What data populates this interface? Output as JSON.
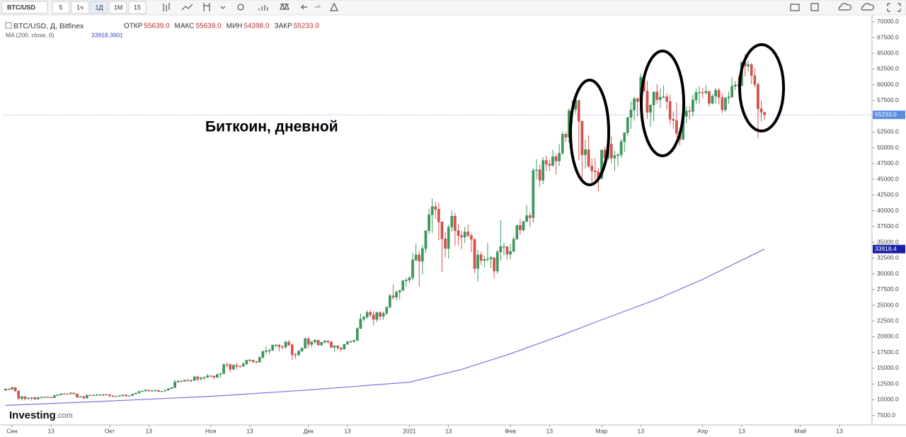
{
  "toolbar": {
    "symbol": "BTC/USD",
    "intervals": [
      "5",
      "1ч",
      "1Д",
      "1М",
      "15"
    ]
  },
  "chart_data": {
    "type": "candlestick",
    "legend_title": "BTC/USD, Д, Bitfinex",
    "ohlc_header": [
      {
        "label": "ОТКР",
        "value": "55639.0"
      },
      {
        "label": "МАКС",
        "value": "55639.0"
      },
      {
        "label": "МИН",
        "value": "54398.0"
      },
      {
        "label": "ЗАКР",
        "value": "55233.0"
      }
    ],
    "annotation": "Биткоин, дневной",
    "up_color": "#3b9b5c",
    "down_color": "#d9534f",
    "open": [
      11500,
      11700,
      11650,
      11950,
      11400,
      10200,
      10500,
      10150,
      10250,
      10350,
      10100,
      10350,
      10400,
      10450,
      10400,
      10320,
      10670,
      10780,
      10950,
      10940,
      10930,
      11080,
      10920,
      10420,
      10530,
      10240,
      10740,
      10690,
      10730,
      10770,
      10700,
      10840,
      10780,
      10620,
      10570,
      10550,
      10670,
      10790,
      10600,
      10670,
      10920,
      11060,
      11300,
      11380,
      11540,
      11430,
      11430,
      11500,
      11320,
      11370,
      11510,
      11750,
      11920,
      12820,
      12970,
      12930,
      13130,
      13030,
      13070,
      13640,
      13280,
      13460,
      13560,
      13800,
      13760,
      13550,
      14030,
      14150,
      15590,
      15580,
      14830,
      15480,
      15330,
      15300,
      15700,
      16280,
      16320,
      16070,
      15960,
      16720,
      17660,
      17800,
      17820,
      18680,
      18710,
      18420,
      18370,
      19160,
      18720,
      17150,
      17140,
      17720,
      18180,
      19710,
      18800,
      19200,
      19450,
      18700,
      19150,
      19360,
      19170,
      18320,
      18550,
      18250,
      18040,
      18800,
      19170,
      19270,
      19440,
      21310,
      22800,
      23140,
      23870,
      23480,
      22750,
      23830,
      23240,
      23730,
      24710,
      26490,
      26280,
      27080,
      27360,
      28890,
      29000,
      29370,
      32190,
      33000,
      31990,
      33990,
      36820,
      39370,
      40670,
      40240,
      38240,
      35540,
      34010,
      37390,
      39150,
      36830,
      36070,
      35820,
      36630,
      36070,
      35470,
      30830,
      33010,
      32100,
      32290,
      32370,
      32570,
      30430,
      33470,
      34320,
      34320,
      33110,
      33540,
      35510,
      37670,
      36950,
      38300,
      39240,
      38900,
      46400,
      46500,
      44840,
      47990,
      47410,
      47190,
      48590,
      47910,
      49150,
      52150,
      51680,
      55890,
      56100,
      57540,
      54210,
      48890,
      49700,
      47090,
      46340,
      46190,
      45140,
      49630,
      48380,
      50540,
      48370,
      48760,
      48880,
      50970,
      52390,
      54820,
      56010,
      57810,
      57330,
      61200,
      59000,
      55630,
      56800,
      58870,
      57650,
      58030,
      58100,
      57350,
      54530,
      54340,
      52300,
      51300,
      55000,
      55840,
      55780,
      57600,
      58760,
      58800,
      58730,
      58970,
      57060,
      58200,
      59130,
      57990,
      56020,
      57900,
      58080,
      59770,
      59990,
      59860,
      63580,
      62970,
      63230,
      61460,
      60060,
      56200,
      55639
    ],
    "high": [
      11800,
      11800,
      12050,
      12000,
      11450,
      10600,
      10550,
      10350,
      10400,
      10450,
      10450,
      10500,
      10500,
      10550,
      10450,
      10750,
      10850,
      11000,
      11050,
      11000,
      11200,
      11100,
      10950,
      10600,
      10550,
      10800,
      10800,
      10800,
      10950,
      10900,
      10880,
      10880,
      10920,
      10700,
      10600,
      10700,
      10800,
      10800,
      10700,
      10950,
      11100,
      11450,
      11450,
      11700,
      11550,
      11550,
      11600,
      11550,
      11400,
      11550,
      11800,
      12000,
      13200,
      13150,
      13050,
      13150,
      13250,
      13250,
      13800,
      13850,
      13650,
      13650,
      14100,
      13900,
      13850,
      14100,
      14250,
      15750,
      15950,
      15750,
      15650,
      15850,
      15450,
      15950,
      16350,
      16500,
      16350,
      16150,
      16900,
      17850,
      18500,
      18150,
      18800,
      18800,
      18750,
      18700,
      19400,
      19500,
      18900,
      17450,
      17900,
      18350,
      19850,
      19900,
      19300,
      19600,
      19500,
      19200,
      19400,
      19400,
      19300,
      18650,
      18650,
      18300,
      18900,
      19400,
      19350,
      19550,
      21500,
      23700,
      23300,
      24200,
      24300,
      24100,
      24000,
      24100,
      24000,
      24800,
      26800,
      28300,
      27400,
      27400,
      29000,
      29300,
      29600,
      33300,
      34800,
      33600,
      34500,
      36900,
      40300,
      41950,
      41400,
      41300,
      38300,
      36600,
      37800,
      40100,
      39700,
      37900,
      36800,
      37450,
      37800,
      36400,
      35600,
      33800,
      33500,
      32900,
      34900,
      32900,
      32600,
      33800,
      38500,
      34900,
      34300,
      34700,
      35900,
      37800,
      38700,
      38400,
      40900,
      39700,
      46800,
      48200,
      47300,
      48500,
      48800,
      48100,
      49700,
      49000,
      50600,
      52600,
      52500,
      56300,
      57500,
      58300,
      57500,
      54300,
      51300,
      52000,
      48300,
      48400,
      46700,
      49800,
      50200,
      52600,
      51800,
      49500,
      49200,
      51400,
      52400,
      54900,
      57400,
      58100,
      58000,
      61800,
      61600,
      60600,
      56900,
      58900,
      60100,
      59400,
      59900,
      58600,
      58400,
      55800,
      57200,
      53200,
      55100,
      56600,
      56600,
      58400,
      59400,
      59800,
      59500,
      60000,
      59000,
      58500,
      59500,
      59500,
      58700,
      58100,
      58900,
      61200,
      60600,
      61300,
      63700,
      64900,
      63800,
      63500,
      62600,
      60400,
      57500,
      55639
    ],
    "low": [
      11450,
      11550,
      11600,
      11250,
      10000,
      9900,
      9950,
      10050,
      9900,
      10000,
      10050,
      10250,
      10300,
      10350,
      10250,
      10300,
      10600,
      10700,
      10800,
      10850,
      10900,
      10850,
      10300,
      10400,
      10150,
      10200,
      10600,
      10650,
      10700,
      10650,
      10650,
      10700,
      10450,
      10400,
      10500,
      10500,
      10550,
      10550,
      10550,
      10650,
      10850,
      11000,
      11250,
      11350,
      11250,
      11300,
      11250,
      11250,
      11300,
      11350,
      11500,
      11700,
      11900,
      12700,
      12750,
      12900,
      12900,
      12800,
      13000,
      12950,
      13150,
      13150,
      13450,
      13600,
      13250,
      13500,
      13550,
      14100,
      15150,
      14350,
      14750,
      14900,
      15100,
      15250,
      15450,
      15950,
      15800,
      15750,
      15900,
      16550,
      17250,
      17250,
      17800,
      18300,
      17700,
      18000,
      18050,
      18500,
      16350,
      16500,
      16900,
      17600,
      18150,
      18200,
      18350,
      18900,
      18600,
      18500,
      18900,
      18900,
      18200,
      17650,
      17900,
      17600,
      18000,
      18750,
      19000,
      19050,
      19300,
      21250,
      22350,
      22800,
      23100,
      21800,
      22350,
      22600,
      22700,
      23450,
      24500,
      25900,
      25800,
      25900,
      27300,
      27900,
      28600,
      29000,
      32000,
      28000,
      29900,
      33300,
      36300,
      36500,
      38700,
      35300,
      30300,
      32600,
      32400,
      36700,
      34500,
      34500,
      33900,
      34900,
      35800,
      33400,
      30100,
      28800,
      31400,
      31000,
      31900,
      30900,
      29300,
      30000,
      32100,
      32900,
      32300,
      32300,
      33500,
      35400,
      36200,
      36700,
      38200,
      37400,
      38100,
      45000,
      43800,
      44200,
      46300,
      46300,
      47000,
      45800,
      47100,
      48900,
      50900,
      50800,
      53900,
      55500,
      48000,
      45000,
      46700,
      46800,
      44200,
      45000,
      43100,
      45000,
      47100,
      48100,
      47500,
      46300,
      47100,
      48400,
      49300,
      51900,
      53000,
      54300,
      55000,
      56100,
      58900,
      54600,
      53300,
      54200,
      57000,
      56300,
      57800,
      56100,
      53700,
      53000,
      51700,
      50400,
      51300,
      53900,
      54500,
      55000,
      57000,
      57000,
      57900,
      58400,
      56500,
      56900,
      57000,
      56900,
      55500,
      55700,
      57000,
      57900,
      59200,
      59400,
      59800,
      61300,
      62100,
      60100,
      59600,
      51500,
      54200,
      54398
    ],
    "close": [
      11700,
      11650,
      11950,
      11400,
      10200,
      10500,
      10150,
      10250,
      10350,
      10100,
      10350,
      10400,
      10450,
      10400,
      10320,
      10670,
      10780,
      10950,
      10940,
      10930,
      11080,
      10920,
      10420,
      10530,
      10240,
      10740,
      10690,
      10730,
      10770,
      10700,
      10840,
      10780,
      10620,
      10570,
      10550,
      10670,
      10790,
      10600,
      10670,
      10920,
      11060,
      11300,
      11380,
      11540,
      11430,
      11430,
      11500,
      11320,
      11370,
      11510,
      11750,
      11920,
      12820,
      12970,
      12930,
      13130,
      13030,
      13070,
      13640,
      13280,
      13460,
      13560,
      13800,
      13760,
      13550,
      14030,
      14150,
      15590,
      15580,
      14830,
      15480,
      15330,
      15300,
      15700,
      16280,
      16320,
      16070,
      15960,
      16720,
      17660,
      17800,
      17820,
      18680,
      18710,
      18420,
      18370,
      19160,
      18720,
      17150,
      17140,
      17720,
      18180,
      19710,
      18800,
      19200,
      19450,
      18700,
      19150,
      19360,
      19170,
      18320,
      18550,
      18250,
      18040,
      18800,
      19170,
      19270,
      19440,
      21310,
      22800,
      23140,
      23870,
      23480,
      22750,
      23830,
      23240,
      23730,
      24710,
      26490,
      26280,
      27080,
      27360,
      28890,
      29000,
      29370,
      32190,
      33000,
      31990,
      33990,
      36820,
      39370,
      40670,
      40240,
      38240,
      35540,
      34010,
      37390,
      39150,
      36830,
      36070,
      35820,
      36630,
      36070,
      35470,
      30830,
      33010,
      32100,
      32290,
      32370,
      32570,
      30430,
      33470,
      34320,
      34320,
      33110,
      33540,
      35510,
      37670,
      36950,
      38300,
      39240,
      38900,
      46400,
      46500,
      44840,
      47990,
      47410,
      47190,
      48590,
      47910,
      49150,
      52150,
      51680,
      55890,
      56100,
      57540,
      54210,
      48890,
      49700,
      47090,
      46340,
      46190,
      45140,
      49630,
      48380,
      50540,
      48370,
      48760,
      48880,
      50970,
      52390,
      54820,
      56010,
      57810,
      57330,
      61200,
      59000,
      55630,
      56800,
      58870,
      57650,
      58030,
      58100,
      57350,
      54530,
      54340,
      52300,
      51300,
      55000,
      55840,
      55780,
      57600,
      58760,
      58800,
      58730,
      58970,
      57060,
      58200,
      59130,
      57990,
      56020,
      57900,
      58080,
      59770,
      59990,
      59860,
      63580,
      62970,
      63230,
      61460,
      60060,
      56200,
      55639,
      55233
    ],
    "last_close_label": "55233.0",
    "ma": {
      "name": "MA (200, close, 0)",
      "value_label": "33918.3901",
      "last_label": "33918.4",
      "color": "#7c74e0",
      "x": [
        0,
        30,
        63,
        93,
        124,
        140,
        155,
        170,
        183,
        200,
        214,
        233
      ],
      "values": [
        9100,
        9750,
        10540,
        11550,
        12790,
        14820,
        17300,
        20110,
        22700,
        25970,
        29120,
        33918.3901
      ]
    },
    "xlim": [
      -0.6,
      266
    ],
    "xticks": [
      {
        "value": 2,
        "label": "Сен"
      },
      {
        "value": 14,
        "label": "13"
      },
      {
        "value": 32,
        "label": "Окт"
      },
      {
        "value": 44,
        "label": "13"
      },
      {
        "value": 63,
        "label": "Ноя"
      },
      {
        "value": 75,
        "label": "13"
      },
      {
        "value": 93,
        "label": "Дек"
      },
      {
        "value": 105,
        "label": "13"
      },
      {
        "value": 124,
        "label": "2021"
      },
      {
        "value": 136,
        "label": "13"
      },
      {
        "value": 155,
        "label": "Фев"
      },
      {
        "value": 167,
        "label": "13"
      },
      {
        "value": 183,
        "label": "Мар"
      },
      {
        "value": 195,
        "label": "13"
      },
      {
        "value": 214,
        "label": "Апр"
      },
      {
        "value": 226,
        "label": "13"
      },
      {
        "value": 244,
        "label": "Май"
      },
      {
        "value": 256,
        "label": "13"
      }
    ],
    "ylim": [
      6000,
      71100
    ],
    "yticks": [
      {
        "value": 7500,
        "label": "7500.0"
      },
      {
        "value": 10000,
        "label": "10000.0"
      },
      {
        "value": 12500,
        "label": "12500.0"
      },
      {
        "value": 15000,
        "label": "15000.0"
      },
      {
        "value": 17500,
        "label": "17500.0"
      },
      {
        "value": 20000,
        "label": "20000.0"
      },
      {
        "value": 22500,
        "label": "22500.0"
      },
      {
        "value": 25000,
        "label": "25000.0"
      },
      {
        "value": 27500,
        "label": "27500.0"
      },
      {
        "value": 30000,
        "label": "30000.0"
      },
      {
        "value": 32500,
        "label": "32500.0"
      },
      {
        "value": 35000,
        "label": "35000.0"
      },
      {
        "value": 37500,
        "label": "37500.0"
      },
      {
        "value": 40000,
        "label": "40000.0"
      },
      {
        "value": 42500,
        "label": "42500.0"
      },
      {
        "value": 45000,
        "label": "45000.0"
      },
      {
        "value": 47500,
        "label": "47500.0"
      },
      {
        "value": 50000,
        "label": "50000.0"
      },
      {
        "value": 52500,
        "label": "52500.0"
      },
      {
        "value": 55000,
        "label": "55000.0"
      },
      {
        "value": 57500,
        "label": "57500.0"
      },
      {
        "value": 60000,
        "label": "60000.0"
      },
      {
        "value": 62500,
        "label": "62500.0"
      },
      {
        "value": 65000,
        "label": "65000.0"
      },
      {
        "value": 67500,
        "label": "67500.0"
      },
      {
        "value": 70000,
        "label": "70000.0"
      }
    ],
    "logo": {
      "text": "Investing",
      "suffix": ".com"
    }
  }
}
